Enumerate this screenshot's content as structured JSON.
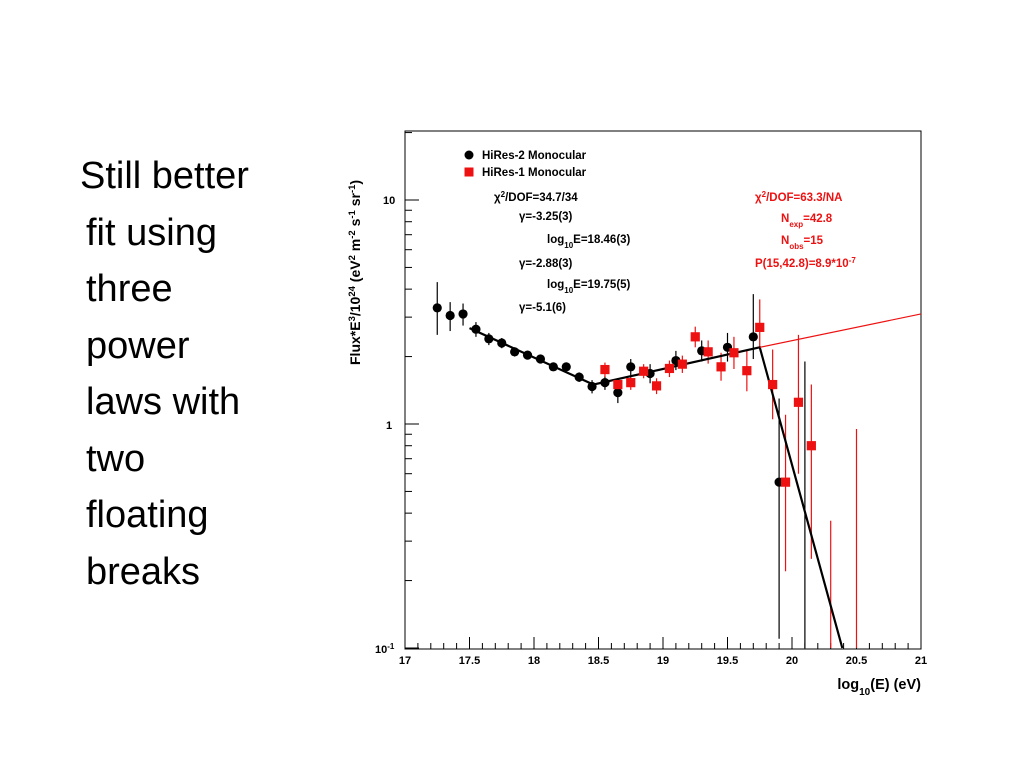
{
  "slide": {
    "text_lines": [
      "Still better",
      "fit using",
      "three",
      "power",
      "laws with",
      "two",
      "floating",
      "breaks"
    ]
  },
  "chart_data": {
    "type": "scatter",
    "x_scale": "linear",
    "y_scale": "log",
    "xlim": [
      17,
      21
    ],
    "ylim": [
      0.1,
      20
    ],
    "xlabel": "log10(E) (eV)",
    "ylabel": "Flux*E3/1024 (eV2 m-2 s-1 sr-1)",
    "x_ticks": [
      "17",
      "17.5",
      "18",
      "18.5",
      "19",
      "19.5",
      "20",
      "20.5",
      "21"
    ],
    "y_ticks": [
      "10^-1",
      "1",
      "10"
    ],
    "grid": false,
    "legend_position": "top-left",
    "series": [
      {
        "name": "HiRes-2 Monocular",
        "marker": "circle",
        "color": "#000000",
        "points": [
          {
            "x": 17.25,
            "y": 3.3,
            "lo": 2.5,
            "hi": 4.3
          },
          {
            "x": 17.35,
            "y": 3.05,
            "lo": 2.6,
            "hi": 3.5
          },
          {
            "x": 17.45,
            "y": 3.1,
            "lo": 2.75,
            "hi": 3.45
          },
          {
            "x": 17.55,
            "y": 2.65,
            "lo": 2.45,
            "hi": 2.85
          },
          {
            "x": 17.65,
            "y": 2.4,
            "lo": 2.25,
            "hi": 2.55
          },
          {
            "x": 17.75,
            "y": 2.3,
            "lo": 2.18,
            "hi": 2.42
          },
          {
            "x": 17.85,
            "y": 2.1,
            "lo": 2.0,
            "hi": 2.2
          },
          {
            "x": 17.95,
            "y": 2.03,
            "lo": 1.95,
            "hi": 2.11
          },
          {
            "x": 18.05,
            "y": 1.95,
            "lo": 1.87,
            "hi": 2.03
          },
          {
            "x": 18.15,
            "y": 1.8,
            "lo": 1.73,
            "hi": 1.87
          },
          {
            "x": 18.25,
            "y": 1.8,
            "lo": 1.72,
            "hi": 1.88
          },
          {
            "x": 18.35,
            "y": 1.62,
            "lo": 1.54,
            "hi": 1.7
          },
          {
            "x": 18.45,
            "y": 1.47,
            "lo": 1.37,
            "hi": 1.57
          },
          {
            "x": 18.55,
            "y": 1.53,
            "lo": 1.42,
            "hi": 1.64
          },
          {
            "x": 18.65,
            "y": 1.38,
            "lo": 1.24,
            "hi": 1.52
          },
          {
            "x": 18.75,
            "y": 1.8,
            "lo": 1.65,
            "hi": 1.95
          },
          {
            "x": 18.9,
            "y": 1.68,
            "lo": 1.52,
            "hi": 1.85
          },
          {
            "x": 19.1,
            "y": 1.92,
            "lo": 1.74,
            "hi": 2.12
          },
          {
            "x": 19.3,
            "y": 2.12,
            "lo": 1.9,
            "hi": 2.36
          },
          {
            "x": 19.5,
            "y": 2.2,
            "lo": 1.9,
            "hi": 2.55
          },
          {
            "x": 19.7,
            "y": 2.45,
            "lo": 1.95,
            "hi": 3.8
          },
          {
            "x": 19.9,
            "y": 0.55,
            "lo": 0.11,
            "hi": 1.3
          },
          {
            "x": 20.1,
            "y": null,
            "lo": 0.1,
            "hi": 1.9
          }
        ]
      },
      {
        "name": "HiRes-1 Monocular",
        "marker": "square",
        "color": "#ee1111",
        "points": [
          {
            "x": 18.55,
            "y": 1.75,
            "lo": 1.62,
            "hi": 1.88
          },
          {
            "x": 18.65,
            "y": 1.5,
            "lo": 1.4,
            "hi": 1.6
          },
          {
            "x": 18.75,
            "y": 1.53,
            "lo": 1.42,
            "hi": 1.64
          },
          {
            "x": 18.85,
            "y": 1.72,
            "lo": 1.6,
            "hi": 1.85
          },
          {
            "x": 18.95,
            "y": 1.48,
            "lo": 1.36,
            "hi": 1.6
          },
          {
            "x": 19.05,
            "y": 1.77,
            "lo": 1.62,
            "hi": 1.92
          },
          {
            "x": 19.15,
            "y": 1.85,
            "lo": 1.69,
            "hi": 2.02
          },
          {
            "x": 19.25,
            "y": 2.45,
            "lo": 2.2,
            "hi": 2.72
          },
          {
            "x": 19.35,
            "y": 2.1,
            "lo": 1.86,
            "hi": 2.36
          },
          {
            "x": 19.45,
            "y": 1.8,
            "lo": 1.56,
            "hi": 2.08
          },
          {
            "x": 19.55,
            "y": 2.08,
            "lo": 1.76,
            "hi": 2.45
          },
          {
            "x": 19.65,
            "y": 1.73,
            "lo": 1.4,
            "hi": 2.12
          },
          {
            "x": 19.75,
            "y": 2.7,
            "lo": 2.2,
            "hi": 3.6
          },
          {
            "x": 19.85,
            "y": 1.5,
            "lo": 1.05,
            "hi": 2.15
          },
          {
            "x": 19.95,
            "y": 0.55,
            "lo": 0.22,
            "hi": 1.1
          },
          {
            "x": 20.05,
            "y": 1.25,
            "lo": 0.6,
            "hi": 2.5
          },
          {
            "x": 20.15,
            "y": 0.8,
            "lo": 0.25,
            "hi": 1.5
          },
          {
            "x": 20.3,
            "y": null,
            "lo": 0.1,
            "hi": 0.37
          },
          {
            "x": 20.5,
            "y": null,
            "lo": 0.1,
            "hi": 0.95
          }
        ]
      }
    ],
    "fit_lines": [
      {
        "name": "broken power law fit",
        "color": "#000000",
        "points": [
          [
            17.5,
            2.68
          ],
          [
            18.46,
            1.5
          ],
          [
            19.75,
            2.2
          ],
          [
            20.39,
            0.1
          ]
        ]
      },
      {
        "name": "extrapolation",
        "color": "#ee1111",
        "points": [
          [
            19.75,
            2.2
          ],
          [
            21.0,
            3.1
          ]
        ]
      }
    ],
    "annotations_black": [
      "χ2/DOF=34.7/34",
      "γ=-3.25(3)",
      "log10E=18.46(3)",
      "γ=-2.88(3)",
      "log10E=19.75(5)",
      "γ=-5.1(6)"
    ],
    "annotations_red": [
      "χ2/DOF=63.3/NA",
      "Nexp=42.8",
      "Nobs=15",
      "P(15,42.8)=8.9*10-7"
    ]
  }
}
